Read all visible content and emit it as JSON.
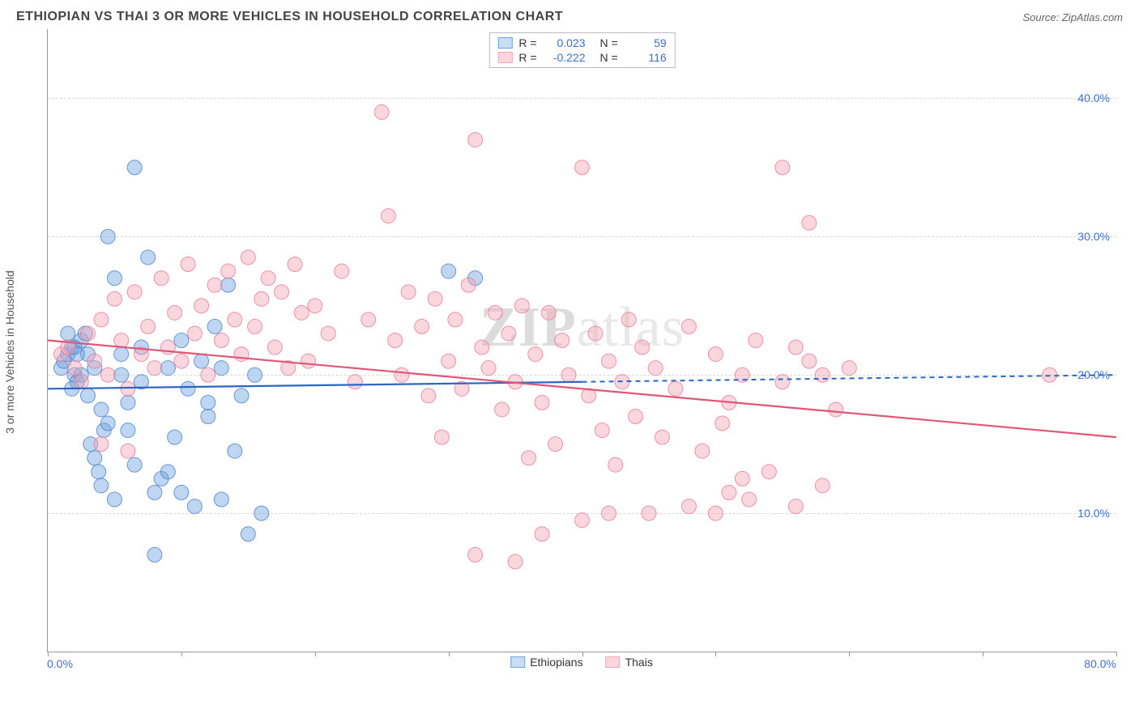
{
  "title": "ETHIOPIAN VS THAI 3 OR MORE VEHICLES IN HOUSEHOLD CORRELATION CHART",
  "source": "Source: ZipAtlas.com",
  "ylabel": "3 or more Vehicles in Household",
  "watermark_bold": "ZIP",
  "watermark_rest": "atlas",
  "chart": {
    "type": "scatter",
    "xlim": [
      0,
      80
    ],
    "ylim": [
      0,
      45
    ],
    "xtick_step": 10,
    "yticks": [
      10,
      20,
      30,
      40
    ],
    "ytick_labels": [
      "10.0%",
      "20.0%",
      "30.0%",
      "40.0%"
    ],
    "xlabel_min": "0.0%",
    "xlabel_max": "80.0%",
    "background_color": "#ffffff",
    "grid_color": "#d8d8d8",
    "axis_color": "#999999",
    "tick_label_color": "#3b6fd6",
    "point_radius": 9,
    "point_opacity": 0.45,
    "point_stroke_opacity": 0.8,
    "series": [
      {
        "name": "Ethiopians",
        "color": "#6fa3e0",
        "stroke": "#4a82c9",
        "trend_color": "#2b66c4",
        "trend_dash_after_x": 40,
        "correlation": "0.023",
        "n": "59",
        "trend_y_start": 19.0,
        "trend_y_end": 20.0,
        "points": [
          [
            1.0,
            20.5
          ],
          [
            1.2,
            21.0
          ],
          [
            1.5,
            21.5
          ],
          [
            1.8,
            22.0
          ],
          [
            2.0,
            20.0
          ],
          [
            2.2,
            19.5
          ],
          [
            2.5,
            22.5
          ],
          [
            2.8,
            23.0
          ],
          [
            3.0,
            18.5
          ],
          [
            3.2,
            15.0
          ],
          [
            3.5,
            14.0
          ],
          [
            3.8,
            13.0
          ],
          [
            4.0,
            17.5
          ],
          [
            4.2,
            16.0
          ],
          [
            4.5,
            30.0
          ],
          [
            5.0,
            27.0
          ],
          [
            5.5,
            20.0
          ],
          [
            6.0,
            18.0
          ],
          [
            6.5,
            35.0
          ],
          [
            7.0,
            22.0
          ],
          [
            7.5,
            28.5
          ],
          [
            8.0,
            11.5
          ],
          [
            8.5,
            12.5
          ],
          [
            9.0,
            20.5
          ],
          [
            9.5,
            15.5
          ],
          [
            10.0,
            22.5
          ],
          [
            10.5,
            19.0
          ],
          [
            11.0,
            10.5
          ],
          [
            11.5,
            21.0
          ],
          [
            12.0,
            17.0
          ],
          [
            12.5,
            23.5
          ],
          [
            13.0,
            11.0
          ],
          [
            13.5,
            26.5
          ],
          [
            14.0,
            14.5
          ],
          [
            14.5,
            18.5
          ],
          [
            15.0,
            8.5
          ],
          [
            15.5,
            20.0
          ],
          [
            16.0,
            10.0
          ],
          [
            8.0,
            7.0
          ],
          [
            5.0,
            11.0
          ],
          [
            6.5,
            13.5
          ],
          [
            4.0,
            12.0
          ],
          [
            3.0,
            21.5
          ],
          [
            2.5,
            20.0
          ],
          [
            2.0,
            22.0
          ],
          [
            1.5,
            23.0
          ],
          [
            1.8,
            19.0
          ],
          [
            2.2,
            21.5
          ],
          [
            4.5,
            16.5
          ],
          [
            7.0,
            19.5
          ],
          [
            9.0,
            13.0
          ],
          [
            10.0,
            11.5
          ],
          [
            12.0,
            18.0
          ],
          [
            13.0,
            20.5
          ],
          [
            30.0,
            27.5
          ],
          [
            32.0,
            27.0
          ],
          [
            3.5,
            20.5
          ],
          [
            5.5,
            21.5
          ],
          [
            6.0,
            16.0
          ]
        ]
      },
      {
        "name": "Thais",
        "color": "#f5a6b8",
        "stroke": "#e87a95",
        "trend_color": "#e15578",
        "trend_dash_after_x": 80,
        "correlation": "-0.222",
        "n": "116",
        "trend_y_start": 22.5,
        "trend_y_end": 15.5,
        "points": [
          [
            1.0,
            21.5
          ],
          [
            1.5,
            22.0
          ],
          [
            2.0,
            20.5
          ],
          [
            2.5,
            19.5
          ],
          [
            3.0,
            23.0
          ],
          [
            3.5,
            21.0
          ],
          [
            4.0,
            24.0
          ],
          [
            4.5,
            20.0
          ],
          [
            5.0,
            25.5
          ],
          [
            5.5,
            22.5
          ],
          [
            6.0,
            19.0
          ],
          [
            6.5,
            26.0
          ],
          [
            7.0,
            21.5
          ],
          [
            7.5,
            23.5
          ],
          [
            8.0,
            20.5
          ],
          [
            8.5,
            27.0
          ],
          [
            9.0,
            22.0
          ],
          [
            9.5,
            24.5
          ],
          [
            10.0,
            21.0
          ],
          [
            10.5,
            28.0
          ],
          [
            11.0,
            23.0
          ],
          [
            11.5,
            25.0
          ],
          [
            12.0,
            20.0
          ],
          [
            12.5,
            26.5
          ],
          [
            13.0,
            22.5
          ],
          [
            13.5,
            27.5
          ],
          [
            14.0,
            24.0
          ],
          [
            14.5,
            21.5
          ],
          [
            15.0,
            28.5
          ],
          [
            15.5,
            23.5
          ],
          [
            16.0,
            25.5
          ],
          [
            16.5,
            27.0
          ],
          [
            17.0,
            22.0
          ],
          [
            17.5,
            26.0
          ],
          [
            18.0,
            20.5
          ],
          [
            18.5,
            28.0
          ],
          [
            19.0,
            24.5
          ],
          [
            19.5,
            21.0
          ],
          [
            20.0,
            25.0
          ],
          [
            21.0,
            23.0
          ],
          [
            22.0,
            27.5
          ],
          [
            23.0,
            19.5
          ],
          [
            24.0,
            24.0
          ],
          [
            25.0,
            39.0
          ],
          [
            25.5,
            31.5
          ],
          [
            26.0,
            22.5
          ],
          [
            26.5,
            20.0
          ],
          [
            27.0,
            26.0
          ],
          [
            28.0,
            23.5
          ],
          [
            28.5,
            18.5
          ],
          [
            29.0,
            25.5
          ],
          [
            29.5,
            15.5
          ],
          [
            30.0,
            21.0
          ],
          [
            30.5,
            24.0
          ],
          [
            31.0,
            19.0
          ],
          [
            31.5,
            26.5
          ],
          [
            32.0,
            37.0
          ],
          [
            32.5,
            22.0
          ],
          [
            33.0,
            20.5
          ],
          [
            33.5,
            24.5
          ],
          [
            34.0,
            17.5
          ],
          [
            34.5,
            23.0
          ],
          [
            35.0,
            19.5
          ],
          [
            35.5,
            25.0
          ],
          [
            36.0,
            14.0
          ],
          [
            36.5,
            21.5
          ],
          [
            37.0,
            18.0
          ],
          [
            37.5,
            24.5
          ],
          [
            38.0,
            15.0
          ],
          [
            38.5,
            22.5
          ],
          [
            39.0,
            20.0
          ],
          [
            40.0,
            35.0
          ],
          [
            40.5,
            18.5
          ],
          [
            41.0,
            23.0
          ],
          [
            41.5,
            16.0
          ],
          [
            42.0,
            21.0
          ],
          [
            42.5,
            13.5
          ],
          [
            43.0,
            19.5
          ],
          [
            43.5,
            24.0
          ],
          [
            44.0,
            17.0
          ],
          [
            44.5,
            22.0
          ],
          [
            45.0,
            10.0
          ],
          [
            45.5,
            20.5
          ],
          [
            46.0,
            15.5
          ],
          [
            47.0,
            19.0
          ],
          [
            48.0,
            23.5
          ],
          [
            49.0,
            14.5
          ],
          [
            50.0,
            21.5
          ],
          [
            50.5,
            16.5
          ],
          [
            51.0,
            18.0
          ],
          [
            52.0,
            20.0
          ],
          [
            52.5,
            11.0
          ],
          [
            53.0,
            22.5
          ],
          [
            54.0,
            13.0
          ],
          [
            55.0,
            19.5
          ],
          [
            56.0,
            10.5
          ],
          [
            57.0,
            21.0
          ],
          [
            58.0,
            12.0
          ],
          [
            59.0,
            17.5
          ],
          [
            60.0,
            20.5
          ],
          [
            32.0,
            7.0
          ],
          [
            37.0,
            8.5
          ],
          [
            40.0,
            9.5
          ],
          [
            35.0,
            6.5
          ],
          [
            4.0,
            15.0
          ],
          [
            6.0,
            14.5
          ],
          [
            55.0,
            35.0
          ],
          [
            56.0,
            22.0
          ],
          [
            57.0,
            31.0
          ],
          [
            58.0,
            20.0
          ],
          [
            50.0,
            10.0
          ],
          [
            51.0,
            11.5
          ],
          [
            52.0,
            12.5
          ],
          [
            48.0,
            10.5
          ],
          [
            75.0,
            20.0
          ],
          [
            42.0,
            10.0
          ]
        ]
      }
    ],
    "bottom_legend": [
      {
        "label": "Ethiopians",
        "fill": "#c9ddf3",
        "border": "#6fa3e0"
      },
      {
        "label": "Thais",
        "fill": "#fbd5de",
        "border": "#f5a6b8"
      }
    ]
  }
}
